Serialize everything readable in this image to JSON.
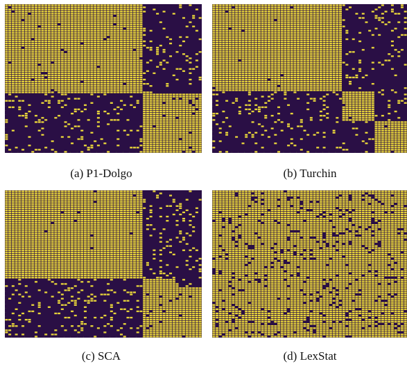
{
  "panels": [
    {
      "caption": "(a) P1-Dolgo",
      "chart_data": {
        "type": "heatmap",
        "rows": 70,
        "cols": 60,
        "seed": 11,
        "blocks": [
          {
            "r0": 0,
            "r1": 42,
            "c0": 0,
            "c1": 42,
            "density": 0.99
          },
          {
            "r0": 42,
            "r1": 70,
            "c0": 42,
            "c1": 55,
            "density": 0.98
          },
          {
            "r0": 42,
            "r1": 70,
            "c0": 55,
            "c1": 60,
            "density": 0.97
          }
        ],
        "background_density": 0.12,
        "colors": {
          "on": "#e6d33a",
          "off": "#2a0f45"
        }
      }
    },
    {
      "caption": "(b) Turchin",
      "chart_data": {
        "type": "heatmap",
        "rows": 70,
        "cols": 60,
        "seed": 23,
        "blocks": [
          {
            "r0": 0,
            "r1": 41,
            "c0": 0,
            "c1": 40,
            "density": 0.99
          },
          {
            "r0": 41,
            "r1": 55,
            "c0": 40,
            "c1": 50,
            "density": 0.98
          },
          {
            "r0": 55,
            "r1": 70,
            "c0": 50,
            "c1": 60,
            "density": 0.98
          }
        ],
        "background_density": 0.11,
        "colors": {
          "on": "#e6d33a",
          "off": "#2a0f45"
        }
      }
    },
    {
      "caption": "(c) SCA",
      "chart_data": {
        "type": "heatmap",
        "rows": 70,
        "cols": 60,
        "seed": 37,
        "blocks": [
          {
            "r0": 0,
            "r1": 42,
            "c0": 0,
            "c1": 42,
            "density": 0.99
          },
          {
            "r0": 42,
            "r1": 70,
            "c0": 42,
            "c1": 52,
            "density": 0.98
          },
          {
            "r0": 46,
            "r1": 70,
            "c0": 52,
            "c1": 60,
            "density": 0.97
          }
        ],
        "background_density": 0.14,
        "colors": {
          "on": "#e6d33a",
          "off": "#2a0f45"
        }
      }
    },
    {
      "caption": "(d) LexStat",
      "chart_data": {
        "type": "heatmap",
        "rows": 70,
        "cols": 60,
        "seed": 53,
        "blocks": [
          {
            "r0": 0,
            "r1": 70,
            "c0": 0,
            "c1": 60,
            "density": 0.9
          }
        ],
        "background_density": 0.9,
        "colors": {
          "on": "#e6d33a",
          "off": "#2a0f45"
        }
      }
    }
  ]
}
